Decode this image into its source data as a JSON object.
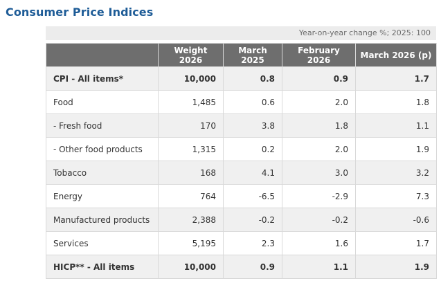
{
  "page": {
    "title": "Consumer Price Indices",
    "note": "Year-on-year change %; 2025: 100"
  },
  "colors": {
    "title": "#1e5c97",
    "header_bg": "#6e6e6e",
    "stripe_bg": "#f0f0f0",
    "border": "#d9d9d9",
    "note_bg": "#ececec"
  },
  "table": {
    "columns": [
      "",
      "Weight 2026",
      "March 2025",
      "February 2026",
      "March 2026 (p)"
    ],
    "rows": [
      {
        "label": "CPI - All items*",
        "weight": "10,000",
        "march_2025": "0.8",
        "february_2026": "0.9",
        "march_2026_p": "1.7",
        "bold": true,
        "striped": true
      },
      {
        "label": "Food",
        "weight": "1,485",
        "march_2025": "0.6",
        "february_2026": "2.0",
        "march_2026_p": "1.8",
        "bold": false,
        "striped": false
      },
      {
        "label": "- Fresh food",
        "weight": "170",
        "march_2025": "3.8",
        "february_2026": "1.8",
        "march_2026_p": "1.1",
        "bold": false,
        "striped": true
      },
      {
        "label": "- Other food products",
        "weight": "1,315",
        "march_2025": "0.2",
        "february_2026": "2.0",
        "march_2026_p": "1.9",
        "bold": false,
        "striped": false
      },
      {
        "label": "Tobacco",
        "weight": "168",
        "march_2025": "4.1",
        "february_2026": "3.0",
        "march_2026_p": "3.2",
        "bold": false,
        "striped": true
      },
      {
        "label": "Energy",
        "weight": "764",
        "march_2025": "-6.5",
        "february_2026": "-2.9",
        "march_2026_p": "7.3",
        "bold": false,
        "striped": false
      },
      {
        "label": "Manufactured products",
        "weight": "2,388",
        "march_2025": "-0.2",
        "february_2026": "-0.2",
        "march_2026_p": "-0.6",
        "bold": false,
        "striped": true
      },
      {
        "label": "Services",
        "weight": "5,195",
        "march_2025": "2.3",
        "february_2026": "1.6",
        "march_2026_p": "1.7",
        "bold": false,
        "striped": false
      },
      {
        "label": "HICP** - All items",
        "weight": "10,000",
        "march_2025": "0.9",
        "february_2026": "1.1",
        "march_2026_p": "1.9",
        "bold": true,
        "striped": true
      }
    ]
  }
}
